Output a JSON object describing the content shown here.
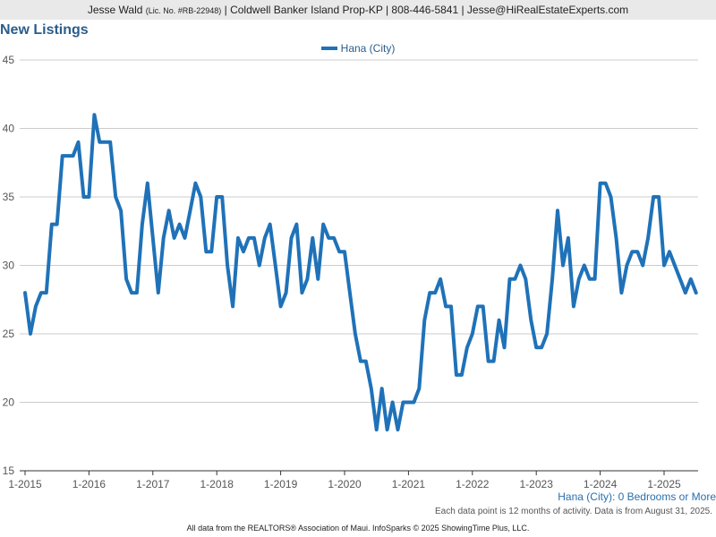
{
  "header": {
    "agent": "Jesse Wald",
    "license": "(Lic. No. #RB-22948)",
    "rest": "| Coldwell Banker Island Prop-KP | 808-446-5841 | Jesse@HiRealEstateExperts.com"
  },
  "title": "New Listings",
  "subtitle": "Hana (City): 0 Bedrooms or More",
  "note": "Each data point is 12 months of activity. Data is from August 31, 2025.",
  "footer": "All data from the REALTORS® Association of Maui. InfoSparks © 2025 ShowingTime Plus, LLC.",
  "colors": {
    "series": "#1f72b8",
    "grid": "#cccccc",
    "axis": "#333333"
  },
  "chart_data": {
    "type": "line",
    "ylim": [
      15,
      45
    ],
    "yticks": [
      "15",
      "20",
      "25",
      "30",
      "35",
      "40",
      "45"
    ],
    "xticks": [
      "1-2015",
      "1-2016",
      "1-2017",
      "1-2018",
      "1-2019",
      "1-2020",
      "1-2021",
      "1-2022",
      "1-2023",
      "1-2024",
      "1-2025"
    ],
    "x_start": "2015-01",
    "grid": true,
    "legend": "top-center",
    "series": [
      {
        "name": "Hana (City)",
        "values": [
          28,
          25,
          27,
          28,
          28,
          33,
          33,
          38,
          38,
          38,
          39,
          35,
          35,
          41,
          39,
          39,
          39,
          35,
          34,
          29,
          28,
          28,
          33,
          36,
          32,
          28,
          32,
          34,
          32,
          33,
          32,
          34,
          36,
          35,
          31,
          31,
          35,
          35,
          30,
          27,
          32,
          31,
          32,
          32,
          30,
          32,
          33,
          30,
          27,
          28,
          32,
          33,
          28,
          29,
          32,
          29,
          33,
          32,
          32,
          31,
          31,
          28,
          25,
          23,
          23,
          21,
          18,
          21,
          18,
          20,
          18,
          20,
          20,
          20,
          21,
          26,
          28,
          28,
          29,
          27,
          27,
          22,
          22,
          24,
          25,
          27,
          27,
          23,
          23,
          26,
          24,
          29,
          29,
          30,
          29,
          26,
          24,
          24,
          25,
          29,
          34,
          30,
          32,
          27,
          29,
          30,
          29,
          29,
          36,
          36,
          35,
          32,
          28,
          30,
          31,
          31,
          30,
          32,
          35,
          35,
          30,
          31,
          30,
          29,
          28,
          29,
          28
        ]
      }
    ]
  }
}
